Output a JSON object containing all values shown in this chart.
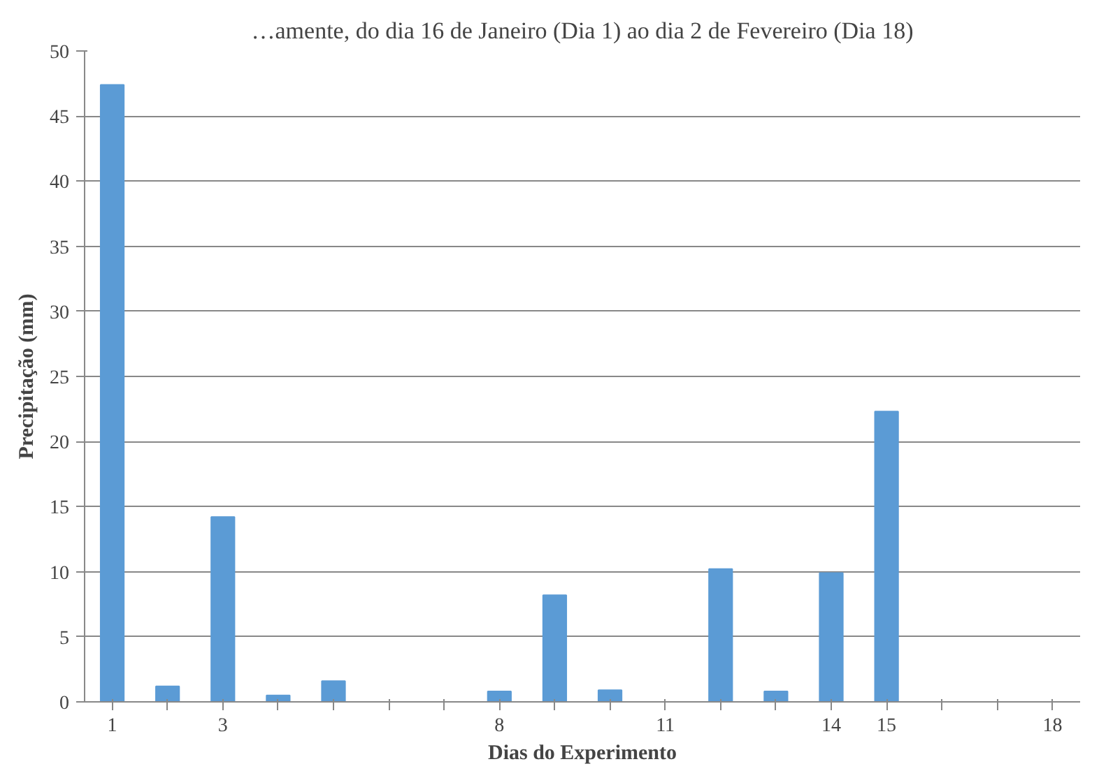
{
  "chart_data": {
    "type": "bar",
    "title": "…amente, do dia 16 de Janeiro (Dia 1) ao dia 2 de Fevereiro (Dia 18)",
    "xlabel": "Dias do Experimento",
    "ylabel": "Precipitação (mm)",
    "categories": [
      "1",
      null,
      "3",
      null,
      null,
      null,
      null,
      "8",
      null,
      null,
      "11",
      null,
      null,
      "14",
      "15",
      null,
      null,
      "18"
    ],
    "values": [
      47.4,
      1.2,
      14.2,
      0.5,
      1.6,
      0,
      0,
      0.8,
      8.2,
      0.9,
      0,
      10.2,
      0.8,
      9.9,
      22.3,
      0,
      0,
      0
    ],
    "color": "#5b9bd5",
    "ylim": [
      0,
      50
    ],
    "yticks": [
      0,
      5,
      10,
      15,
      20,
      25,
      30,
      35,
      40,
      45,
      50
    ],
    "grid": "y"
  }
}
